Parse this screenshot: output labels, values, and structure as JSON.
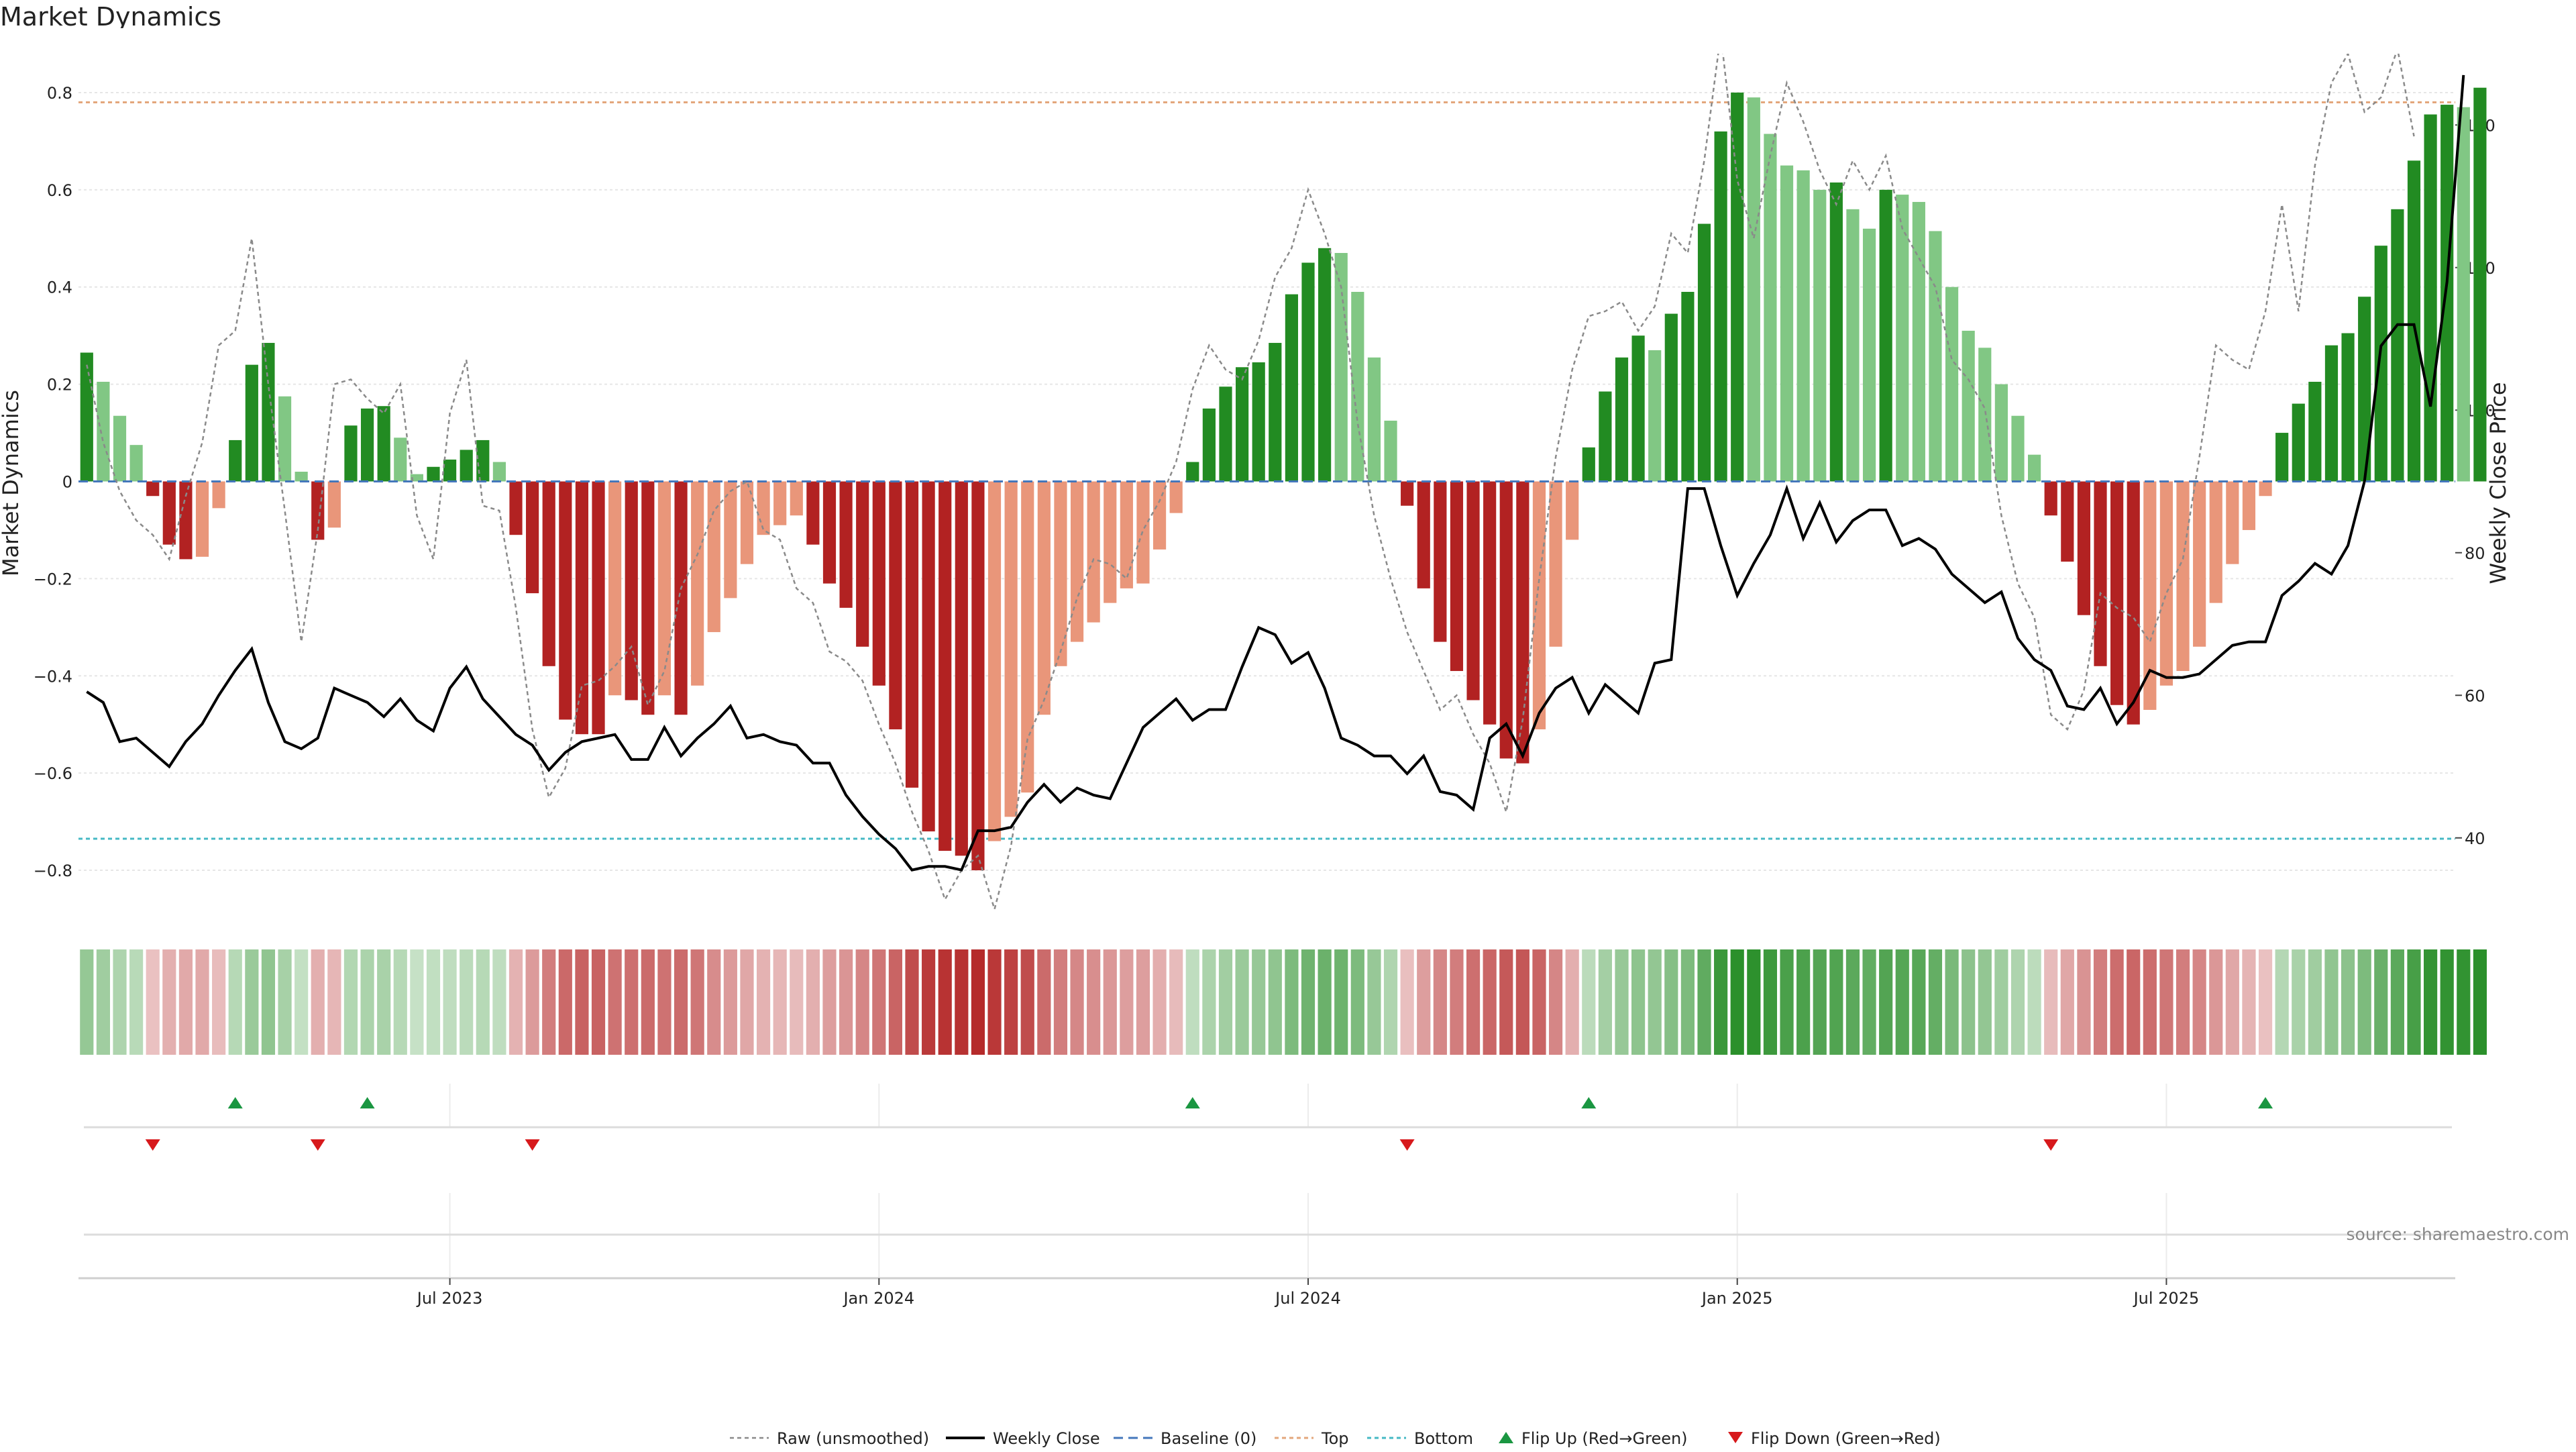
{
  "chart_data": {
    "type": "bar",
    "title": "Market Dynamics",
    "ylabel": "Market Dynamics",
    "y2label": "Weekly Close Price",
    "ylim": [
      -0.88,
      0.88
    ],
    "y2lim": [
      30,
      150
    ],
    "y_ticks": [
      -0.8,
      -0.6,
      -0.4,
      -0.2,
      0,
      0.2,
      0.4,
      0.6,
      0.8
    ],
    "y_tick_labels": [
      "−0.8",
      "−0.6",
      "−0.4",
      "−0.2",
      "0",
      "0.2",
      "0.4",
      "0.6",
      "0.8"
    ],
    "y2_ticks": [
      40,
      60,
      80,
      100,
      120,
      140
    ],
    "y2_tick_labels": [
      "40",
      "60",
      "80",
      "100",
      "120",
      "140"
    ],
    "x_tick_labels": [
      "Jul 2023",
      "Jan 2024",
      "Jul 2024",
      "Jan 2025",
      "Jul 2025"
    ],
    "x_tick_weeks": [
      22,
      48,
      74,
      100,
      126
    ],
    "x_range": [
      -0.5,
      143.5
    ],
    "top_level": 0.78,
    "bottom_level": -0.735,
    "start_date": "2023-01",
    "grid": true,
    "legend_position": "bottom-center",
    "source": "source: sharemaestro.com",
    "legend": [
      "Raw (unsmoothed)",
      "Weekly Close",
      "Baseline (0)",
      "Top",
      "Bottom",
      "Flip Up (Red→Green)",
      "Flip Down (Green→Red)"
    ],
    "series": [
      {
        "name": "Market Dynamics",
        "values": [
          0.265,
          0.205,
          0.135,
          0.075,
          -0.03,
          -0.13,
          -0.16,
          -0.155,
          -0.055,
          0.085,
          0.24,
          0.285,
          0.175,
          0.02,
          -0.12,
          -0.095,
          0.115,
          0.15,
          0.155,
          0.09,
          0.015,
          0.03,
          0.045,
          0.065,
          0.085,
          0.04,
          -0.11,
          -0.23,
          -0.38,
          -0.49,
          -0.52,
          -0.52,
          -0.44,
          -0.45,
          -0.48,
          -0.44,
          -0.48,
          -0.42,
          -0.31,
          -0.24,
          -0.17,
          -0.11,
          -0.09,
          -0.07,
          -0.13,
          -0.21,
          -0.26,
          -0.34,
          -0.42,
          -0.51,
          -0.63,
          -0.72,
          -0.76,
          -0.77,
          -0.8,
          -0.74,
          -0.69,
          -0.64,
          -0.48,
          -0.38,
          -0.33,
          -0.29,
          -0.25,
          -0.22,
          -0.21,
          -0.14,
          -0.065,
          0.04,
          0.15,
          0.195,
          0.235,
          0.245,
          0.285,
          0.385,
          0.45,
          0.48,
          0.47,
          0.39,
          0.255,
          0.125,
          -0.05,
          -0.22,
          -0.33,
          -0.39,
          -0.45,
          -0.5,
          -0.57,
          -0.58,
          -0.51,
          -0.34,
          -0.12,
          0.07,
          0.185,
          0.255,
          0.3,
          0.27,
          0.345,
          0.39,
          0.53,
          0.72,
          0.8,
          0.79,
          0.715,
          0.65,
          0.64,
          0.6,
          0.615,
          0.56,
          0.52,
          0.6,
          0.59,
          0.575,
          0.515,
          0.4,
          0.31,
          0.275,
          0.2,
          0.135,
          0.055,
          -0.07,
          -0.165,
          -0.275,
          -0.38,
          -0.46,
          -0.5,
          -0.47,
          -0.42,
          -0.39,
          -0.34,
          -0.25,
          -0.17,
          -0.1,
          -0.03,
          0.1,
          0.16,
          0.205,
          0.28,
          0.305,
          0.38,
          0.485,
          0.56,
          0.66,
          0.755,
          0.775,
          0.77,
          0.81
        ]
      },
      {
        "name": "Raw (unsmoothed)",
        "values": [
          0.24,
          0.08,
          -0.02,
          -0.08,
          -0.11,
          -0.16,
          -0.03,
          0.08,
          0.28,
          0.31,
          0.5,
          0.2,
          -0.06,
          -0.33,
          -0.1,
          0.2,
          0.21,
          0.17,
          0.14,
          0.2,
          -0.07,
          -0.16,
          0.14,
          0.25,
          -0.05,
          -0.06,
          -0.26,
          -0.51,
          -0.65,
          -0.59,
          -0.42,
          -0.41,
          -0.38,
          -0.34,
          -0.46,
          -0.39,
          -0.22,
          -0.15,
          -0.06,
          -0.02,
          0.0,
          -0.1,
          -0.12,
          -0.22,
          -0.25,
          -0.35,
          -0.37,
          -0.41,
          -0.5,
          -0.58,
          -0.68,
          -0.76,
          -0.86,
          -0.8,
          -0.77,
          -0.88,
          -0.75,
          -0.53,
          -0.45,
          -0.35,
          -0.24,
          -0.16,
          -0.17,
          -0.2,
          -0.1,
          -0.04,
          0.04,
          0.19,
          0.28,
          0.23,
          0.21,
          0.29,
          0.42,
          0.48,
          0.6,
          0.51,
          0.4,
          0.12,
          -0.07,
          -0.2,
          -0.31,
          -0.39,
          -0.47,
          -0.44,
          -0.52,
          -0.58,
          -0.68,
          -0.49,
          -0.2,
          0.05,
          0.23,
          0.34,
          0.35,
          0.37,
          0.31,
          0.36,
          0.51,
          0.47,
          0.66,
          0.92,
          0.62,
          0.5,
          0.67,
          0.82,
          0.74,
          0.64,
          0.57,
          0.66,
          0.6,
          0.67,
          0.52,
          0.46,
          0.4,
          0.25,
          0.21,
          0.15,
          -0.07,
          -0.21,
          -0.28,
          -0.48,
          -0.51,
          -0.43,
          -0.23,
          -0.26,
          -0.28,
          -0.33,
          -0.23,
          -0.16,
          0.05,
          0.28,
          0.25,
          0.23,
          0.35,
          0.57,
          0.35,
          0.65,
          0.82,
          0.88,
          0.76,
          0.79,
          0.89,
          0.71
        ]
      },
      {
        "name": "Weekly Close",
        "values": [
          60.5,
          59,
          53.5,
          54,
          52,
          50,
          53.5,
          56,
          60,
          63.5,
          66.5,
          59,
          53.5,
          52.5,
          54,
          61,
          60,
          59,
          57,
          59.5,
          56.5,
          55,
          61,
          64,
          59.5,
          57,
          54.5,
          53,
          49.5,
          52,
          53.5,
          54,
          54.5,
          51,
          51,
          55.5,
          51.5,
          54,
          56,
          58.5,
          54,
          54.5,
          53.5,
          53,
          50.5,
          50.5,
          46,
          43,
          40.5,
          38.5,
          35.5,
          36,
          36,
          35.5,
          41,
          41,
          41.5,
          45,
          47.5,
          45,
          47,
          46,
          45.5,
          50.5,
          55.5,
          57.5,
          59.5,
          56.5,
          58,
          58,
          64,
          69.5,
          68.5,
          64.5,
          66,
          61,
          54,
          53,
          51.5,
          51.5,
          49,
          51.5,
          46.5,
          46,
          44,
          54,
          56,
          51.5,
          57.5,
          61,
          62.5,
          57.5,
          61.5,
          59.5,
          57.5,
          64.5,
          65,
          89,
          89,
          81,
          74,
          78.5,
          82.5,
          89,
          82,
          87,
          81.5,
          84.5,
          86,
          86,
          81,
          82,
          80.5,
          77,
          75,
          73,
          74.5,
          68,
          65,
          63.5,
          58.5,
          58,
          61,
          56,
          59,
          63.5,
          62.5,
          62.5,
          63,
          65,
          67,
          67.5,
          67.5,
          74,
          76,
          78.5,
          77,
          81,
          90,
          109,
          112,
          112,
          100.5,
          118,
          147
        ]
      }
    ],
    "flips_up": [
      9,
      17,
      67,
      91,
      132
    ],
    "flips_down": [
      4,
      14,
      27,
      80,
      119
    ]
  },
  "colors": {
    "strong_green": "#228b22",
    "light_green": "#81c784",
    "strong_red": "#b22222",
    "light_red": "#e9967a",
    "raw_line": "#8a8a8a",
    "close_line": "#000000",
    "baseline": "#4477bb",
    "top_line": "#e3a77c",
    "bottom_line": "#45b9c4",
    "flip_up": "#1a9641",
    "flip_down": "#d7191c"
  }
}
